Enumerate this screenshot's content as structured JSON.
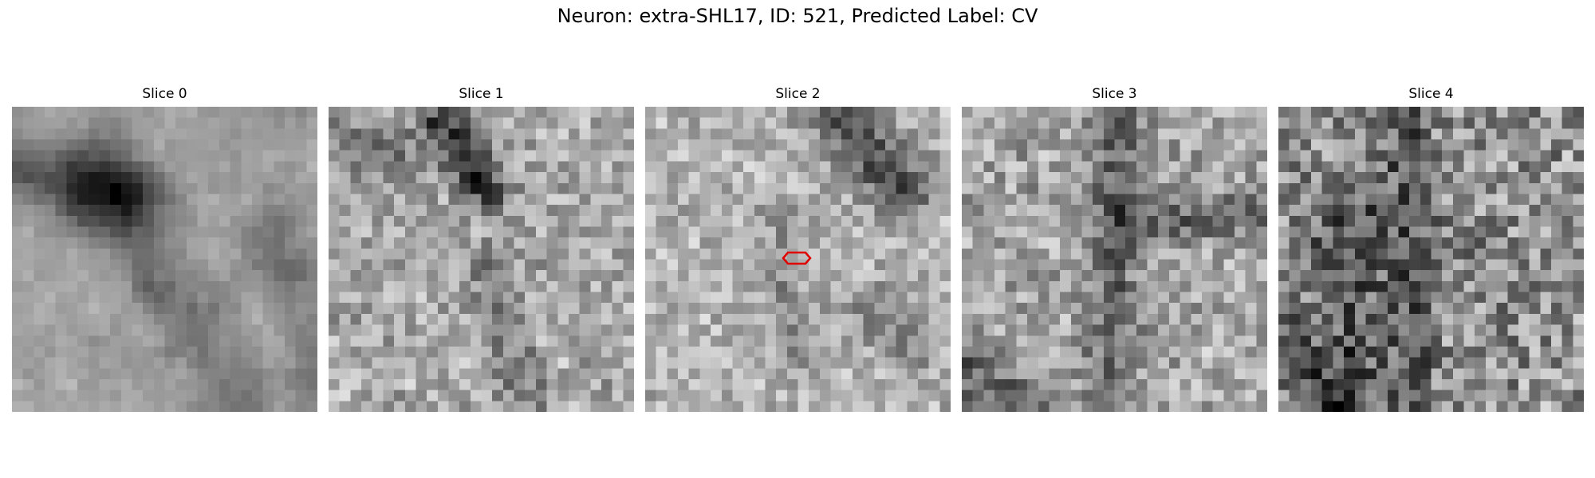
{
  "figure": {
    "title": "Neuron: extra-SHL17, ID: 521, Predicted Label: CV"
  },
  "panels": [
    {
      "title": "Slice 0",
      "seed": 11,
      "theme": "dark-curve-top-left"
    },
    {
      "title": "Slice 1",
      "seed": 23,
      "theme": "dark-streak-top-center"
    },
    {
      "title": "Slice 2",
      "seed": 37,
      "theme": "bright-center-with-marker"
    },
    {
      "title": "Slice 3",
      "seed": 51,
      "theme": "dark-vertical-and-horizontal"
    },
    {
      "title": "Slice 4",
      "seed": 67,
      "theme": "dark-noisy"
    }
  ],
  "grid_size": 28,
  "marker_color": "#e00000"
}
